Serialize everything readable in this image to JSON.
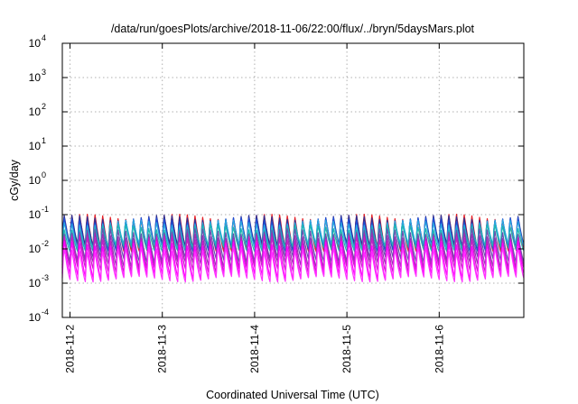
{
  "chart_data": {
    "type": "line",
    "title": "/data/run/goesPlots/archive/2018-11-06/22:00/flux/../bryn/5daysMars.plot",
    "xlabel": "Coordinated Universal Time (UTC)",
    "ylabel": "cGy/day",
    "y_scale": "log",
    "ylim": [
      0.0001,
      10000
    ],
    "y_ticks": [
      {
        "base": "10",
        "exp": "-4",
        "value": 0.0001
      },
      {
        "base": "10",
        "exp": "-3",
        "value": 0.001
      },
      {
        "base": "10",
        "exp": "-2",
        "value": 0.01
      },
      {
        "base": "10",
        "exp": "-1",
        "value": 0.1
      },
      {
        "base": "10",
        "exp": "0",
        "value": 1
      },
      {
        "base": "10",
        "exp": "1",
        "value": 10
      },
      {
        "base": "10",
        "exp": "2",
        "value": 100
      },
      {
        "base": "10",
        "exp": "3",
        "value": 1000
      },
      {
        "base": "10",
        "exp": "4",
        "value": 10000
      }
    ],
    "xlim": [
      "2018-11-01T22:00",
      "2018-11-06T22:00"
    ],
    "x_ticks": [
      {
        "label": "2018-11-2",
        "value": "2018-11-02T00:00"
      },
      {
        "label": "2018-11-3",
        "value": "2018-11-03T00:00"
      },
      {
        "label": "2018-11-4",
        "value": "2018-11-04T00:00"
      },
      {
        "label": "2018-11-5",
        "value": "2018-11-05T00:00"
      },
      {
        "label": "2018-11-6",
        "value": "2018-11-06T00:00"
      }
    ],
    "grid": true,
    "legend": "none",
    "oscillation_period_hours": 2,
    "series": [
      {
        "color": "#e51e25",
        "peak": 0.11,
        "trough": 0.01
      },
      {
        "color": "#2e3192",
        "peak": 0.1,
        "trough": 0.012
      },
      {
        "color": "#1f4fd8",
        "peak": 0.085,
        "trough": 0.01
      },
      {
        "color": "#29a8e0",
        "peak": 0.07,
        "trough": 0.012
      },
      {
        "color": "#1fb8b0",
        "peak": 0.05,
        "trough": 0.01
      },
      {
        "color": "#6a4fb0",
        "peak": 0.04,
        "trough": 0.005
      },
      {
        "color": "#9b30b5",
        "peak": 0.03,
        "trough": 0.0035
      },
      {
        "color": "#c61fc6",
        "peak": 0.025,
        "trough": 0.0025
      },
      {
        "color": "#ff00ff",
        "peak": 0.018,
        "trough": 0.0016
      },
      {
        "color": "#ff33ff",
        "peak": 0.012,
        "trough": 0.0013
      }
    ]
  }
}
